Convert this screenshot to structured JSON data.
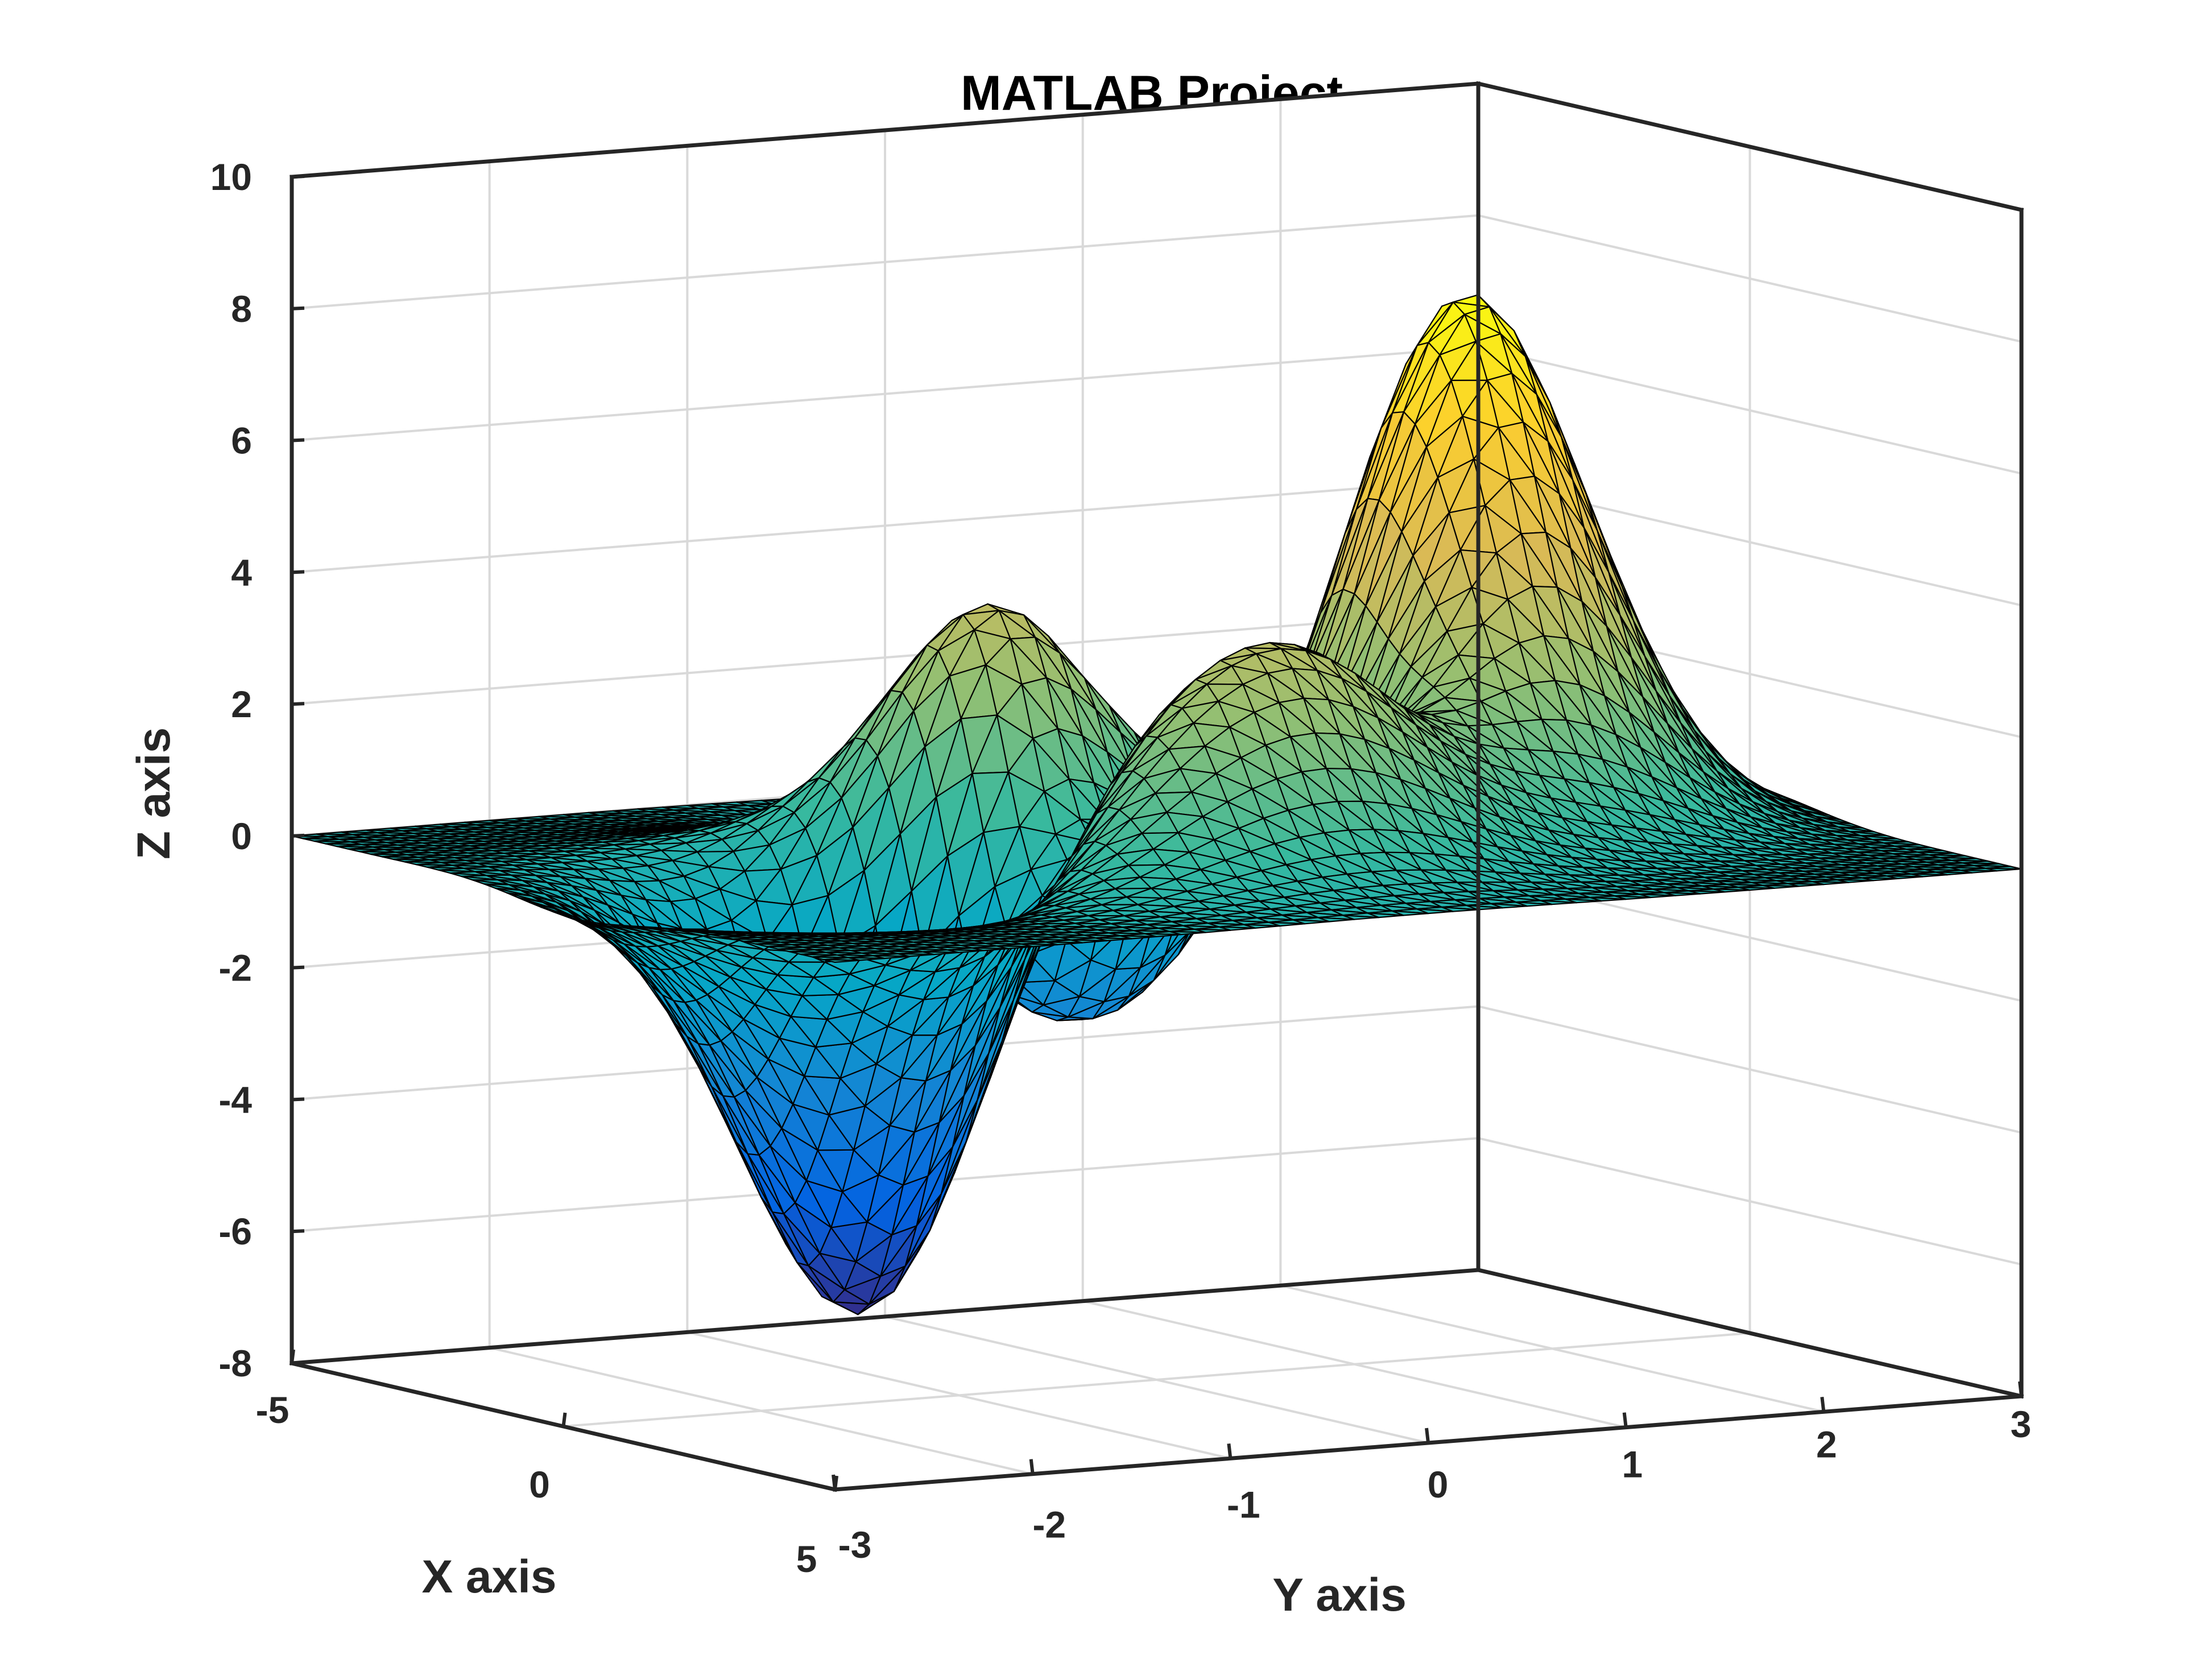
{
  "chart_data": {
    "type": "surface",
    "title": "MATLAB Project",
    "xlabel": "X axis",
    "ylabel": "Y axis",
    "zlabel": "Z axis",
    "function": "peaks",
    "xlim": [
      -5,
      5
    ],
    "ylim": [
      -3,
      3
    ],
    "zlim": [
      -8,
      10
    ],
    "x_ticks": [
      -5,
      0,
      5
    ],
    "y_ticks": [
      -3,
      -2,
      -1,
      0,
      1,
      2,
      3
    ],
    "z_ticks": [
      -8,
      -6,
      -4,
      -2,
      0,
      2,
      4,
      6,
      8,
      10
    ],
    "x_tick_labels": [
      "-5",
      "0",
      "5"
    ],
    "y_tick_labels": [
      "-3",
      "-2",
      "-1",
      "0",
      "1",
      "2",
      "3"
    ],
    "z_tick_labels": [
      "-8",
      "-6",
      "-4",
      "-2",
      "0",
      "2",
      "4",
      "6",
      "8",
      "10"
    ],
    "grid": true,
    "colormap": "parula",
    "edge_color": "#000000",
    "extrema": {
      "max_z": 8.1,
      "min_z": -6.6
    }
  }
}
